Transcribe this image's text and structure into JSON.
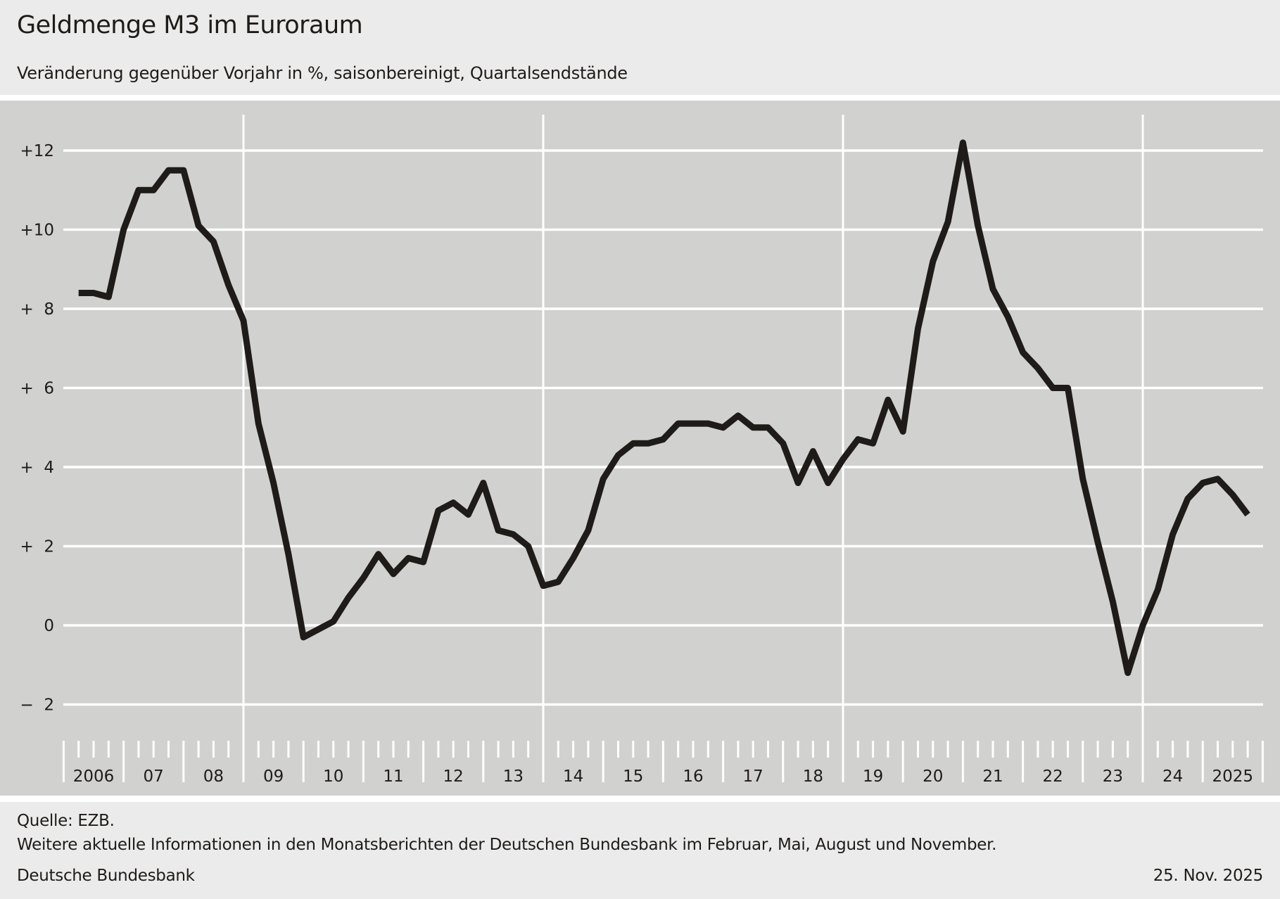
{
  "header": {
    "title": "Geldmenge M3 im Euroraum",
    "subtitle": "Veränderung gegenüber Vorjahr in %, saisonbereinigt, Quartalsendstände"
  },
  "footer": {
    "source": "Quelle: EZB.",
    "info": "Weitere aktuelle Informationen in den Monatsberichten der Deutschen Bundesbank im Februar, Mai, August und November.",
    "organization": "Deutsche Bundesbank",
    "date": "25. Nov. 2025"
  },
  "colors": {
    "header_bg": "#ebebeb",
    "panel_bg": "#d1d1cf",
    "grid": "#ffffff",
    "line": "#1e1b18"
  },
  "chart_data": {
    "type": "line",
    "title": "Geldmenge M3 im Euroraum",
    "subtitle": "Veränderung gegenüber Vorjahr in %, saisonbereinigt, Quartalsendstände",
    "xlabel": "",
    "ylabel": "",
    "ylim": [
      -3,
      13
    ],
    "grid": true,
    "frequency": "quarterly",
    "start": "2006-Q1",
    "end": "2025-Q3",
    "y_ticks": [
      {
        "value": 12,
        "label": "+12"
      },
      {
        "value": 10,
        "label": "+10"
      },
      {
        "value": 8,
        "label": "+  8"
      },
      {
        "value": 6,
        "label": "+  6"
      },
      {
        "value": 4,
        "label": "+  4"
      },
      {
        "value": 2,
        "label": "+  2"
      },
      {
        "value": 0,
        "label": "0"
      },
      {
        "value": -2,
        "label": "−  2"
      }
    ],
    "x_year_labels": [
      "2006",
      "07",
      "08",
      "09",
      "10",
      "11",
      "12",
      "13",
      "14",
      "15",
      "16",
      "17",
      "18",
      "19",
      "20",
      "21",
      "22",
      "23",
      "24",
      "2025"
    ],
    "first_year": 2006,
    "major_gridline_years": [
      2009,
      2014,
      2019,
      2024
    ],
    "series": [
      {
        "name": "Geldmenge M3",
        "values": [
          8.4,
          8.4,
          8.3,
          10.0,
          11.0,
          11.0,
          11.5,
          11.5,
          10.1,
          9.7,
          8.6,
          7.7,
          5.1,
          3.6,
          1.8,
          -0.3,
          -0.1,
          0.1,
          0.7,
          1.2,
          1.8,
          1.3,
          1.7,
          1.6,
          2.9,
          3.1,
          2.8,
          3.6,
          2.4,
          2.3,
          2.0,
          1.0,
          1.1,
          1.7,
          2.4,
          3.7,
          4.3,
          4.6,
          4.6,
          4.7,
          5.1,
          5.1,
          5.1,
          5.0,
          5.3,
          5.0,
          5.0,
          4.6,
          3.6,
          4.4,
          3.6,
          4.2,
          4.7,
          4.6,
          5.7,
          4.9,
          7.5,
          9.2,
          10.2,
          12.2,
          10.1,
          8.5,
          7.8,
          6.9,
          6.5,
          6.0,
          6.0,
          3.7,
          2.1,
          0.6,
          -1.2,
          0.0,
          0.9,
          2.3,
          3.2,
          3.6,
          3.7,
          3.3,
          2.8
        ]
      }
    ]
  }
}
